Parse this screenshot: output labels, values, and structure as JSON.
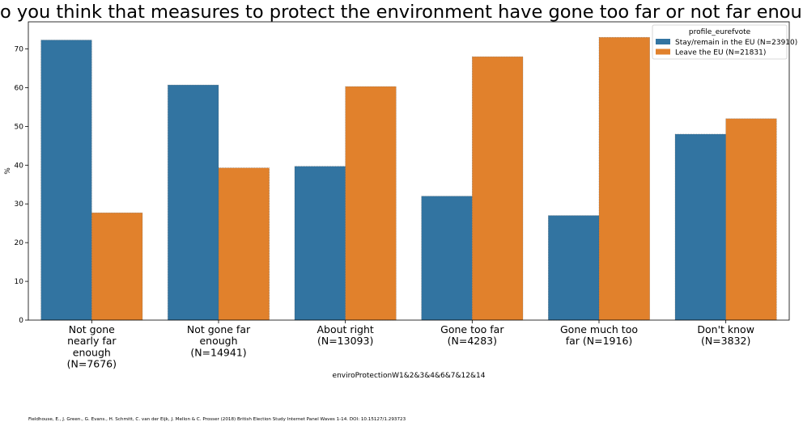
{
  "chart_data": {
    "type": "bar",
    "title": "Do you think that measures to protect the environment have gone too far or not far enough?",
    "xlabel": "enviroProtectionW1&2&3&4&6&7&12&14",
    "ylabel": "%",
    "ylim": [
      0,
      77
    ],
    "yticks": [
      0,
      10,
      20,
      30,
      40,
      50,
      60,
      70
    ],
    "categories": [
      "Not gone\nnearly far\nenough\n(N=7676)",
      "Not gone far\nenough\n(N=14941)",
      "About right\n(N=13093)",
      "Gone too far\n(N=4283)",
      "Gone much too\nfar (N=1916)",
      "Don't know\n(N=3832)"
    ],
    "series": [
      {
        "name": "Stay/remain in the EU (N=23910)",
        "color": "#3274a1",
        "values": [
          72.3,
          60.7,
          39.7,
          32.0,
          27.0,
          48.0
        ]
      },
      {
        "name": "Leave the EU (N=21831)",
        "color": "#e1812c",
        "values": [
          27.7,
          39.3,
          60.3,
          68.0,
          73.0,
          52.0
        ]
      }
    ],
    "legend_title": "profile_eurefvote",
    "legend_position": "top-right",
    "grid": false
  },
  "citation": "Fieldhouse, E., J. Green., G. Evans., H. Schmitt, C. van der Eijk, J. Mellon & C. Prosser (2018) British Election Study Internet Panel Waves 1-14. DOI: 10.15127/1.293723"
}
